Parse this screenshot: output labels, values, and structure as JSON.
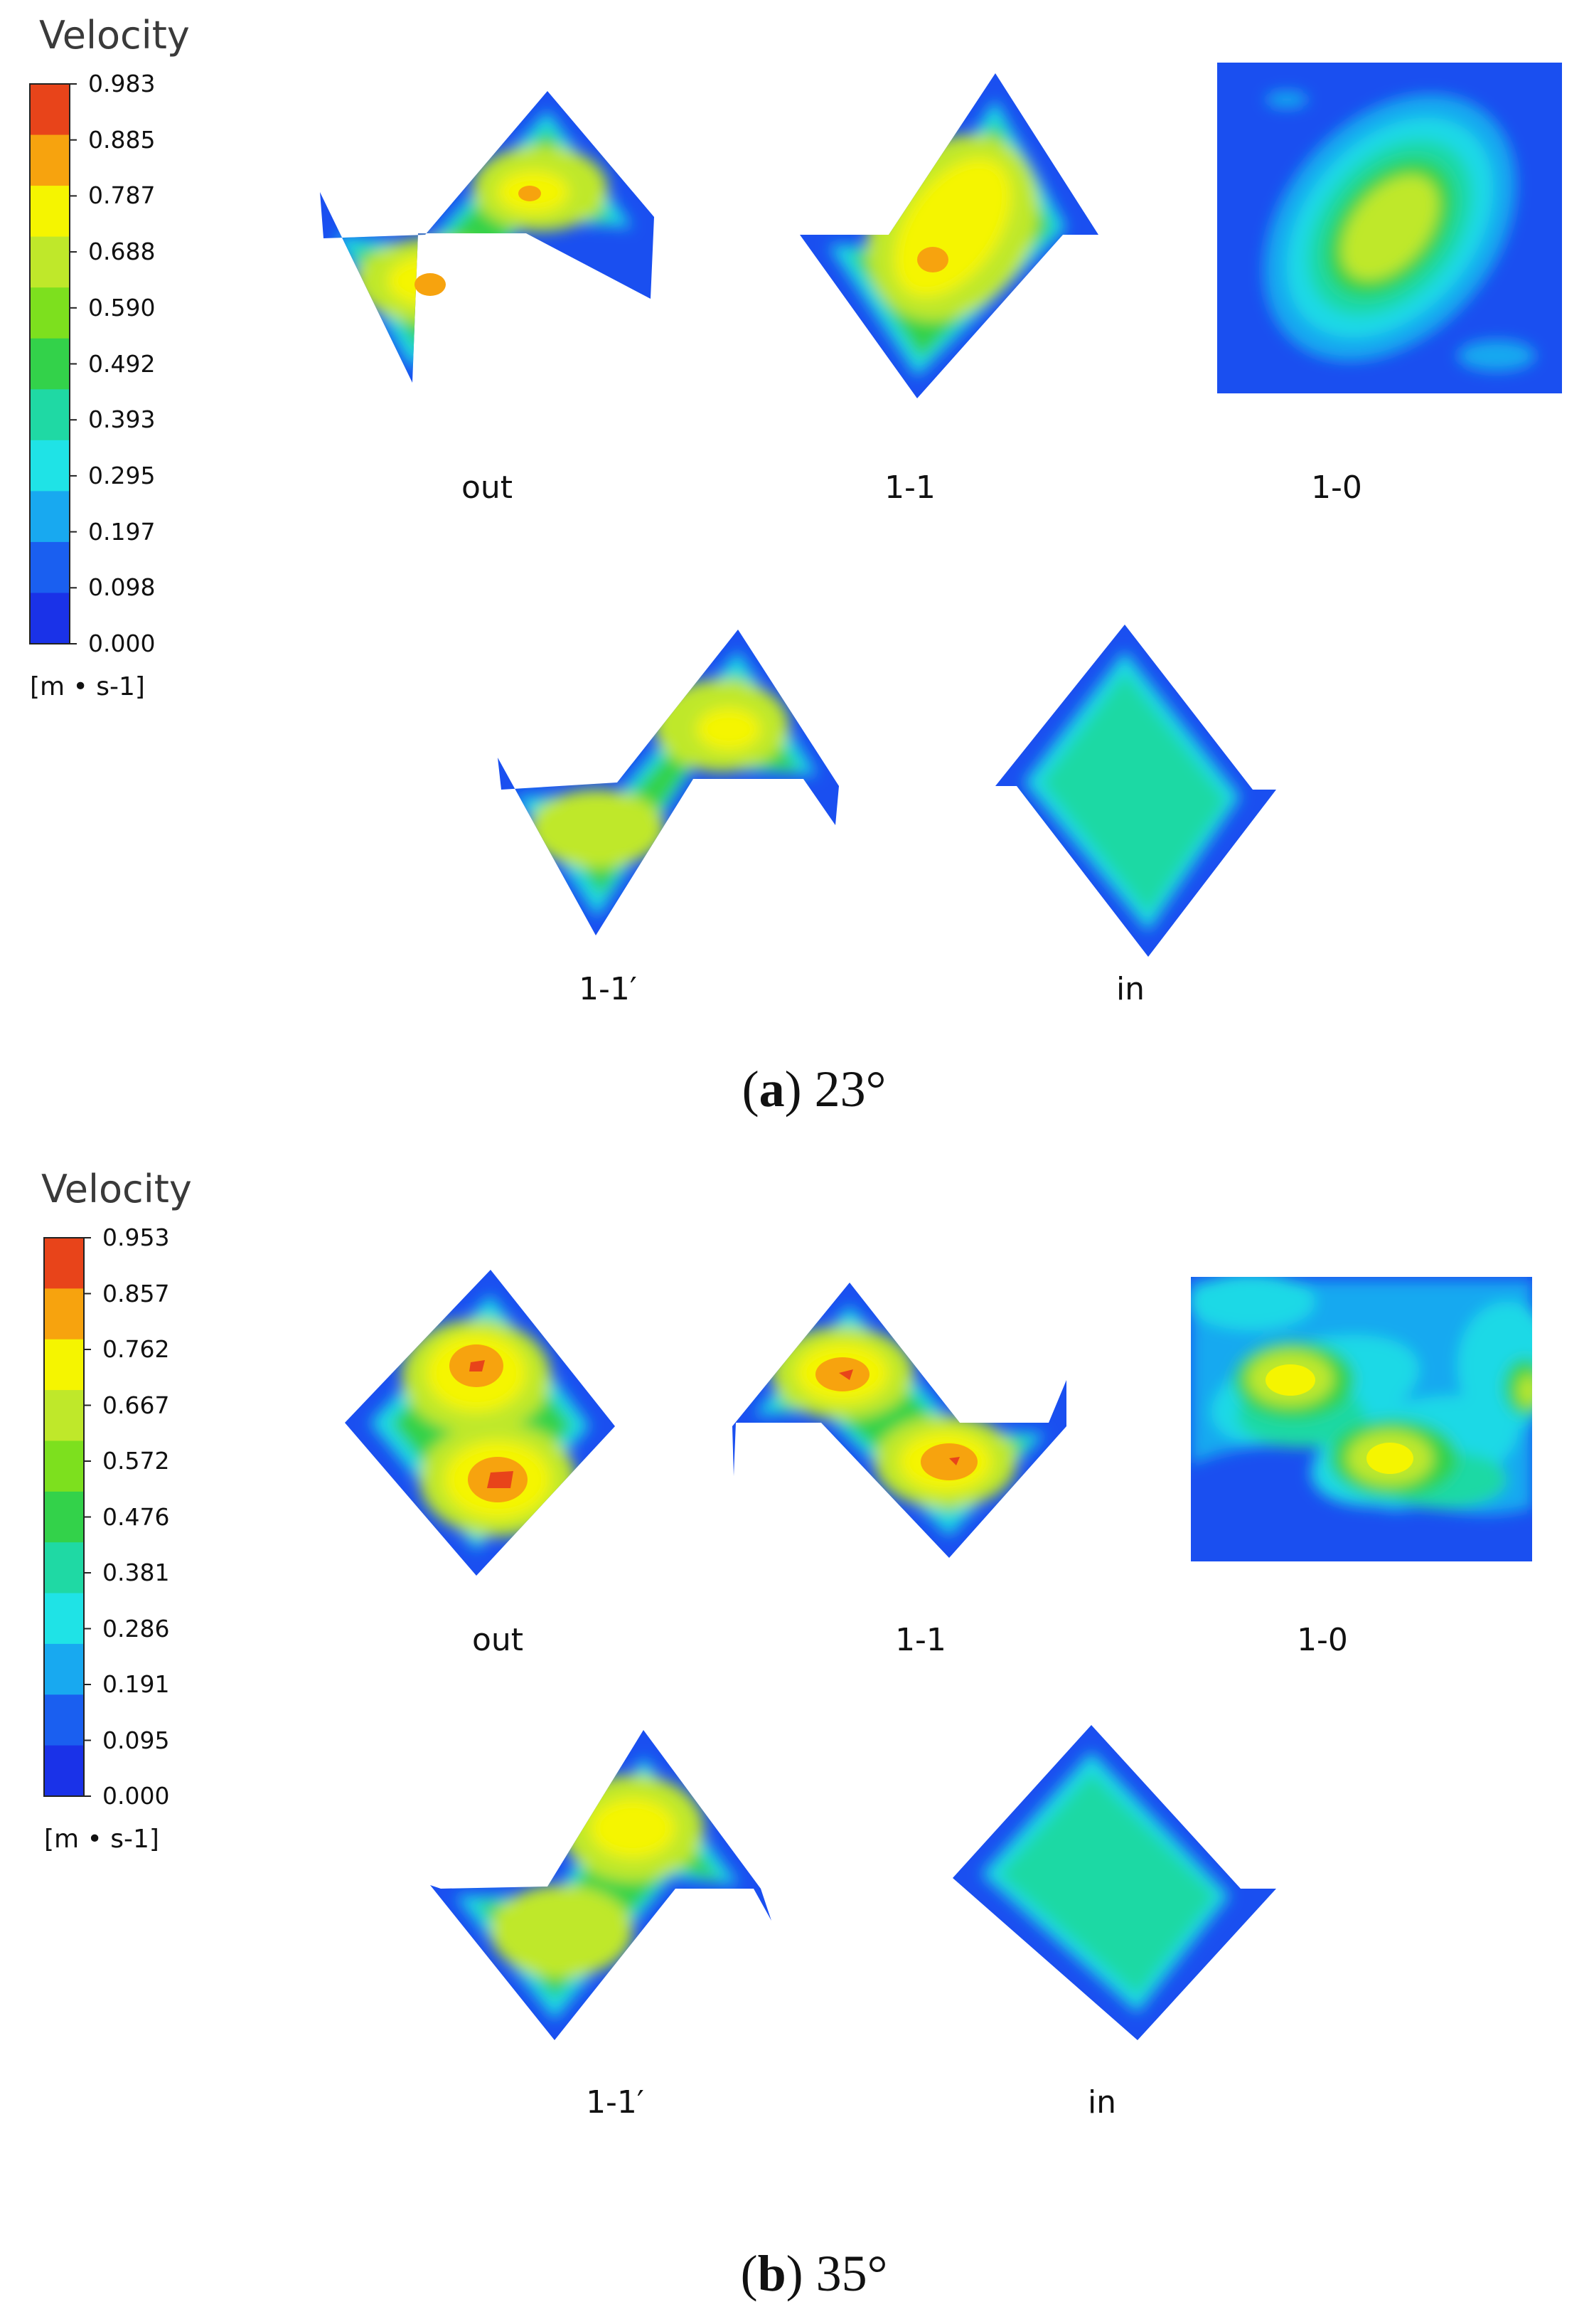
{
  "panels": [
    {
      "legend": {
        "title": "Velocity",
        "ticks": [
          "0.983",
          "0.885",
          "0.787",
          "0.688",
          "0.590",
          "0.492",
          "0.393",
          "0.295",
          "0.197",
          "0.098",
          "0.000"
        ],
        "unit": "[m • s-1]",
        "colors": [
          "#e8441a",
          "#f7a30e",
          "#f5f500",
          "#bfe82a",
          "#7de01e",
          "#33d24a",
          "#1fd9a4",
          "#1fe3e6",
          "#18a9f0",
          "#1a5ff0",
          "#1a32e8"
        ]
      },
      "labels": [
        "out",
        "1-1",
        "1-0",
        "1-1′",
        "in"
      ],
      "caption_letter": "a",
      "caption_text": " 23°"
    },
    {
      "legend": {
        "title": "Velocity",
        "ticks": [
          "0.953",
          "0.857",
          "0.762",
          "0.667",
          "0.572",
          "0.476",
          "0.381",
          "0.286",
          "0.191",
          "0.095",
          "0.000"
        ],
        "unit": "[m • s-1]",
        "colors": [
          "#e8441a",
          "#f7a30e",
          "#f5f500",
          "#bfe82a",
          "#7de01e",
          "#33d24a",
          "#1fd9a4",
          "#1fe3e6",
          "#18a9f0",
          "#1a5ff0",
          "#1a32e8"
        ]
      },
      "labels": [
        "out",
        "1-1",
        "1-0",
        "1-1′",
        "in"
      ],
      "caption_letter": "b",
      "caption_text": " 35°"
    }
  ]
}
